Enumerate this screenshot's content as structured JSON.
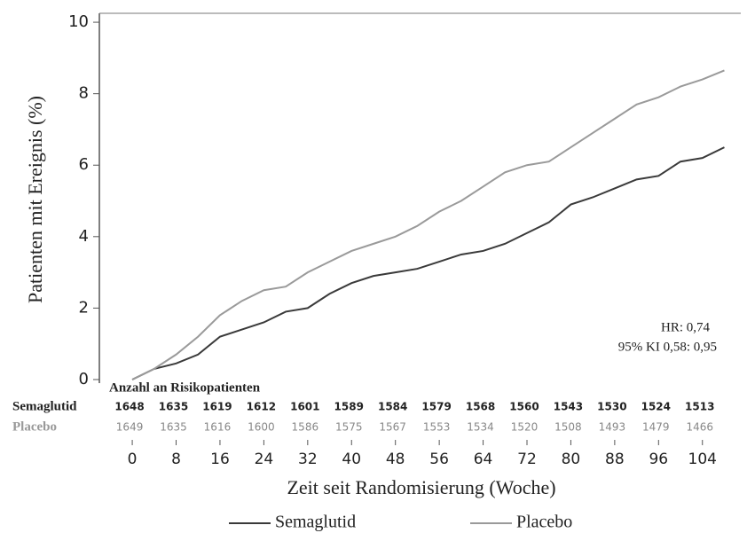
{
  "chart_data": {
    "type": "line",
    "y_label": "Patienten mit Ereignis (%)",
    "x_label": "Zeit seit Randomisierung (Woche)",
    "x": [
      0,
      4,
      8,
      12,
      16,
      20,
      24,
      28,
      32,
      36,
      40,
      44,
      48,
      52,
      56,
      60,
      64,
      68,
      72,
      76,
      80,
      84,
      88,
      92,
      96,
      100,
      104,
      108
    ],
    "series": [
      {
        "name": "Semaglutid",
        "color": "#3a3a3a",
        "values": [
          0,
          0.3,
          0.45,
          0.7,
          1.2,
          1.4,
          1.6,
          1.9,
          2.0,
          2.4,
          2.7,
          2.9,
          3.0,
          3.1,
          3.3,
          3.5,
          3.6,
          3.8,
          4.1,
          4.4,
          4.9,
          5.1,
          5.35,
          5.6,
          5.7,
          6.1,
          6.2,
          6.5
        ]
      },
      {
        "name": "Placebo",
        "color": "#9a9a9a",
        "values": [
          0,
          0.3,
          0.7,
          1.2,
          1.8,
          2.2,
          2.5,
          2.6,
          3.0,
          3.3,
          3.6,
          3.8,
          4.0,
          4.3,
          4.7,
          5.0,
          5.4,
          5.8,
          6.0,
          6.1,
          6.5,
          6.9,
          7.3,
          7.7,
          7.9,
          8.2,
          8.4,
          8.65
        ]
      }
    ],
    "xlim": [
      -6,
      111
    ],
    "ylim": [
      -0.1,
      10.25
    ],
    "xticks": [
      0,
      8,
      16,
      24,
      32,
      40,
      48,
      56,
      64,
      72,
      80,
      88,
      96,
      104
    ],
    "yticks": [
      0,
      2,
      4,
      6,
      8,
      10
    ],
    "annotations": [
      "HR: 0,74",
      "95% KI 0,58: 0,95"
    ],
    "risk_table": {
      "title": "Anzahl an Risikopatienten",
      "rows": [
        {
          "label": "Semaglutid",
          "values": [
            "1648",
            "1635",
            "1619",
            "1612",
            "1601",
            "1589",
            "1584",
            "1579",
            "1568",
            "1560",
            "1543",
            "1530",
            "1524",
            "1513"
          ]
        },
        {
          "label": "Placebo",
          "values": [
            "1649",
            "1635",
            "1616",
            "1600",
            "1586",
            "1575",
            "1567",
            "1553",
            "1534",
            "1520",
            "1508",
            "1493",
            "1479",
            "1466"
          ]
        }
      ]
    }
  }
}
